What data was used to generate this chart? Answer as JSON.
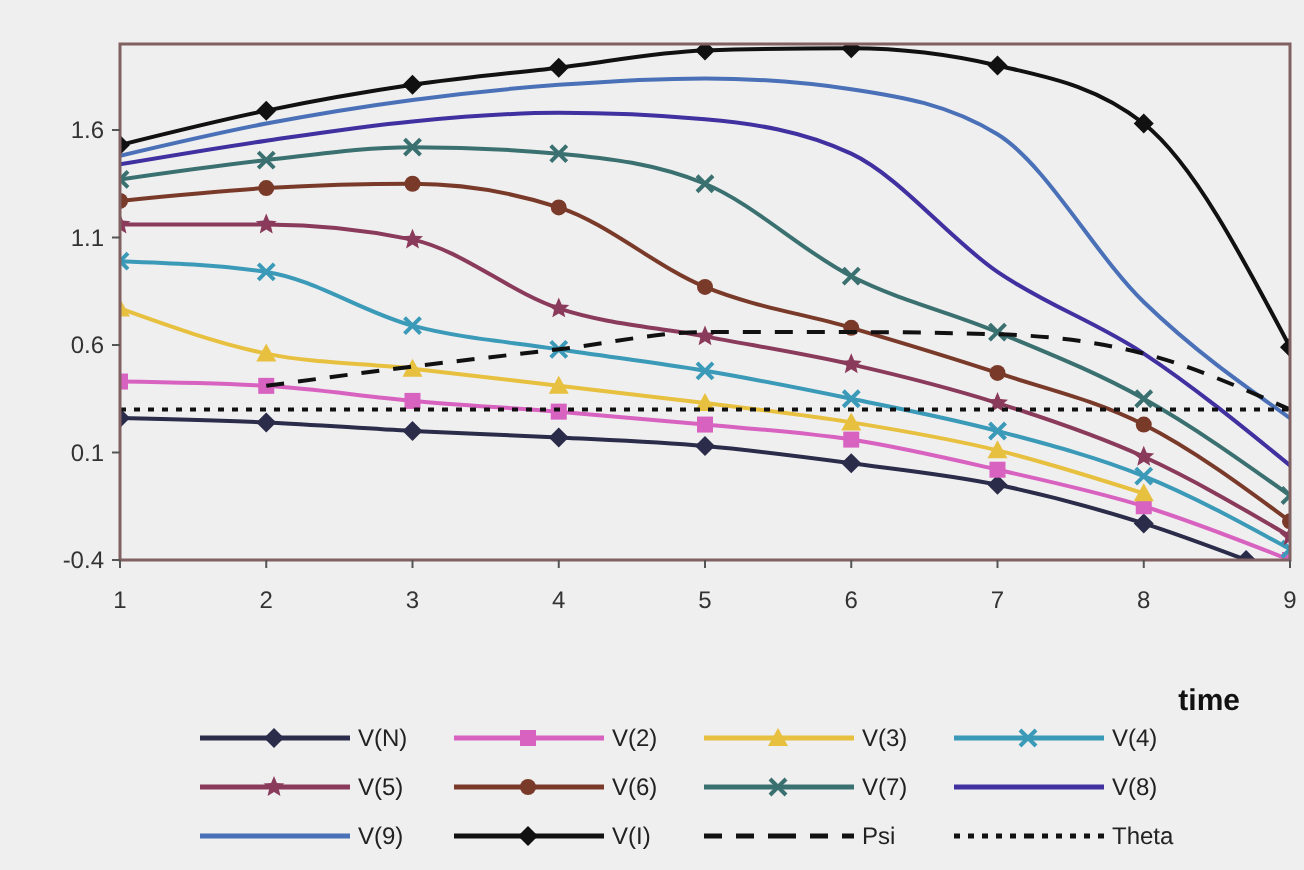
{
  "chart_data": {
    "type": "line",
    "xlabel": "time",
    "x": [
      1,
      2,
      3,
      4,
      5,
      6,
      7,
      8,
      9
    ],
    "xlim": [
      1,
      9
    ],
    "xticks": [
      1,
      2,
      3,
      4,
      5,
      6,
      7,
      8,
      9
    ],
    "ylim": [
      -0.4,
      2.0
    ],
    "yticks": [
      -0.4,
      0.1,
      0.6,
      1.1,
      1.6
    ],
    "grid": false,
    "legend": "bottom",
    "series": [
      {
        "name": "V(N)",
        "color": "#2b2b4a",
        "marker": "diamond",
        "x": [
          1,
          2,
          3,
          4,
          5,
          6,
          7,
          8,
          8.7
        ],
        "values": [
          0.26,
          0.24,
          0.2,
          0.17,
          0.13,
          0.05,
          -0.05,
          -0.23,
          -0.4
        ]
      },
      {
        "name": "V(2)",
        "color": "#d862c0",
        "marker": "square",
        "values": [
          0.43,
          0.41,
          0.34,
          0.29,
          0.23,
          0.16,
          0.02,
          -0.15,
          -0.4
        ]
      },
      {
        "name": "V(3)",
        "color": "#e8c040",
        "marker": "triangle",
        "values": [
          0.77,
          0.56,
          0.49,
          0.41,
          0.33,
          0.24,
          0.11,
          -0.09,
          null
        ]
      },
      {
        "name": "V(4)",
        "color": "#3a9ab8",
        "marker": "cross",
        "values": [
          0.99,
          0.94,
          0.69,
          0.58,
          0.48,
          0.35,
          0.2,
          -0.01,
          -0.35
        ]
      },
      {
        "name": "V(5)",
        "color": "#8a3a5a",
        "marker": "star",
        "values": [
          1.16,
          1.16,
          1.09,
          0.77,
          0.64,
          0.51,
          0.33,
          0.08,
          -0.29
        ]
      },
      {
        "name": "V(6)",
        "color": "#7a3a2a",
        "marker": "circle",
        "values": [
          1.27,
          1.33,
          1.35,
          1.24,
          0.87,
          0.68,
          0.47,
          0.23,
          -0.22
        ]
      },
      {
        "name": "V(7)",
        "color": "#3a7070",
        "marker": "cross",
        "values": [
          1.37,
          1.46,
          1.52,
          1.49,
          1.35,
          0.92,
          0.66,
          0.35,
          -0.1
        ]
      },
      {
        "name": "V(8)",
        "color": "#4030a0",
        "marker": "none",
        "values": [
          1.44,
          1.55,
          1.64,
          1.68,
          1.65,
          1.49,
          0.94,
          0.56,
          0.04
        ]
      },
      {
        "name": "V(9)",
        "color": "#4a70b8",
        "marker": "none",
        "values": [
          1.48,
          1.63,
          1.74,
          1.81,
          1.84,
          1.79,
          1.58,
          0.8,
          0.26
        ]
      },
      {
        "name": "V(I)",
        "color": "#111111",
        "marker": "diamond",
        "values": [
          1.53,
          1.69,
          1.81,
          1.89,
          1.97,
          1.98,
          1.9,
          1.63,
          0.59
        ]
      },
      {
        "name": "Psi",
        "color": "#111111",
        "marker": "none",
        "line_style": "dashed",
        "x": [
          2,
          3,
          4,
          5,
          6,
          7,
          8,
          9
        ],
        "values": [
          0.41,
          0.5,
          0.58,
          0.66,
          0.66,
          0.65,
          0.56,
          0.3
        ]
      },
      {
        "name": "Theta",
        "color": "#111111",
        "marker": "none",
        "line_style": "dotted",
        "x": [
          1,
          9
        ],
        "values": [
          0.3,
          0.3
        ]
      }
    ]
  }
}
